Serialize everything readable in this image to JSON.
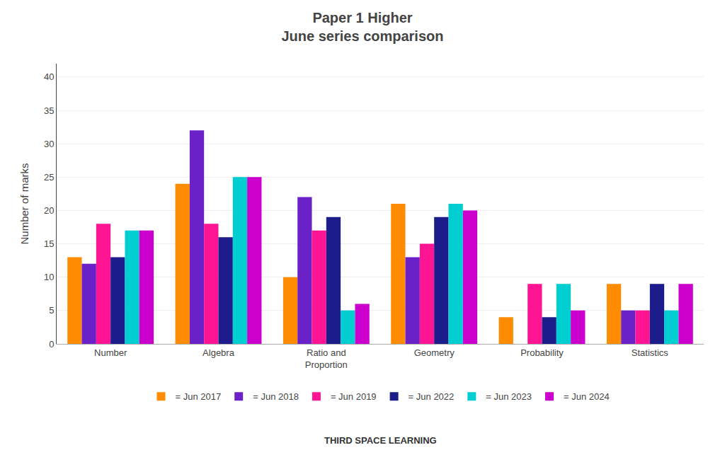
{
  "chart_data": {
    "type": "bar",
    "title": "Paper 1 Higher\nJune series comparison",
    "ylabel": "Number of marks",
    "categories": [
      "Number",
      "Algebra",
      "Ratio and\nProportion",
      "Geometry",
      "Probability",
      "Statistics"
    ],
    "series": [
      {
        "name": "= Jun 2017",
        "color": "#FF8C00",
        "values": [
          13,
          24,
          10,
          21,
          4,
          9
        ]
      },
      {
        "name": "= Jun 2018",
        "color": "#6B21C8",
        "values": [
          12,
          32,
          22,
          13,
          0,
          5
        ]
      },
      {
        "name": "= Jun 2019",
        "color": "#FF1493",
        "values": [
          18,
          18,
          17,
          15,
          9,
          5
        ]
      },
      {
        "name": "= Jun 2022",
        "color": "#1C1C8A",
        "values": [
          13,
          16,
          19,
          19,
          4,
          9
        ]
      },
      {
        "name": "= Jun 2023",
        "color": "#00CED1",
        "values": [
          17,
          25,
          5,
          21,
          9,
          5
        ]
      },
      {
        "name": "= Jun 2024",
        "color": "#CC00CC",
        "values": [
          17,
          25,
          6,
          20,
          5,
          9
        ]
      }
    ],
    "ylim": [
      0,
      42
    ],
    "yticks": [
      0,
      5,
      10,
      15,
      20,
      25,
      30,
      35,
      40
    ],
    "grid": true,
    "legend": "bottom",
    "annotations": [
      {
        "text": "THIRD SPACE LEARNING"
      }
    ]
  }
}
